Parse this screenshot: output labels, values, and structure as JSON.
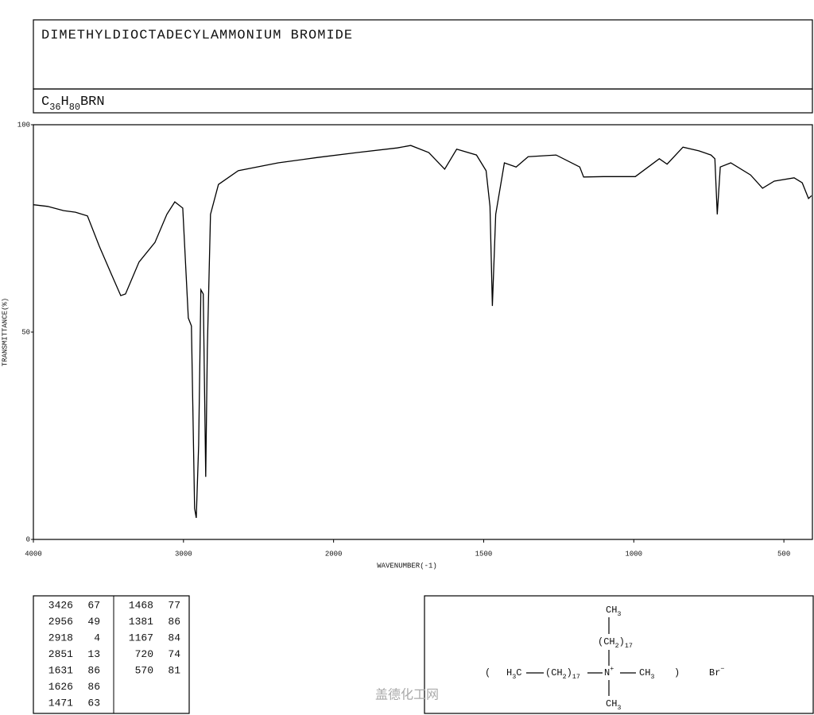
{
  "chart_data": {
    "type": "line",
    "title": "DIMETHYLDIOCTADECYLAMMONIUM BROMIDE",
    "formula": "C36H80BRN",
    "x_label": "WAVENUMBER(-1)",
    "y_label": "TRANSMITTANCE(%)",
    "xlim": [
      4000,
      405
    ],
    "xscale_break": 2000,
    "xticks": [
      4000,
      3000,
      2000,
      1500,
      1000,
      500
    ],
    "ylim": [
      0,
      100
    ],
    "yticks": [
      0,
      50,
      100
    ],
    "color": "#000000",
    "x": [
      4000,
      3905,
      3799,
      3720,
      3640,
      3561,
      3481,
      3418,
      3386,
      3296,
      3190,
      3111,
      3058,
      3005,
      2968,
      2947,
      2926,
      2915,
      2899,
      2884,
      2868,
      2852,
      2841,
      2820,
      2767,
      2635,
      2370,
      2106,
      1921,
      1788,
      1743,
      1683,
      1630,
      1590,
      1524,
      1492,
      1479,
      1471,
      1460,
      1431,
      1392,
      1352,
      1259,
      1180,
      1167,
      1101,
      995,
      915,
      889,
      836,
      783,
      743,
      730,
      722,
      712,
      677,
      611,
      571,
      532,
      466,
      439,
      418,
      408
    ],
    "values": [
      80.7,
      80.3,
      79.3,
      78.9,
      78,
      70.7,
      64,
      58.8,
      59.2,
      66.9,
      71.6,
      78.4,
      81.4,
      79.9,
      53.4,
      51.5,
      7.5,
      5.2,
      22.8,
      60.2,
      59.2,
      15.1,
      45.8,
      78.4,
      85.6,
      88.9,
      90.8,
      92.1,
      93.3,
      94.4,
      95,
      93.3,
      89.3,
      94.1,
      92.7,
      88.9,
      80.3,
      56.3,
      78.4,
      90.8,
      89.8,
      92.3,
      92.7,
      89.8,
      87.4,
      87.5,
      87.5,
      91.8,
      90.5,
      94.6,
      93.7,
      92.7,
      91.8,
      78.4,
      89.8,
      90.8,
      87.9,
      84.7,
      86.4,
      87.2,
      86,
      82.2,
      82.9
    ]
  },
  "peak_table": {
    "columns": [
      [
        [
          3426,
          67
        ],
        [
          2956,
          49
        ],
        [
          2918,
          4
        ],
        [
          2851,
          13
        ],
        [
          1631,
          86
        ],
        [
          1626,
          86
        ],
        [
          1471,
          63
        ]
      ],
      [
        [
          1468,
          77
        ],
        [
          1381,
          86
        ],
        [
          1167,
          84
        ],
        [
          720,
          74
        ],
        [
          570,
          81
        ]
      ]
    ]
  },
  "structure": {
    "top": "CH3",
    "upper_chain": "(CH2)17",
    "open": "(",
    "left": "H3C",
    "left_chain": "(CH2)17",
    "center": "N+",
    "right": "CH3",
    "close": ")",
    "anion": "Br−",
    "bottom": "CH3"
  },
  "watermark": "盖德化工网"
}
